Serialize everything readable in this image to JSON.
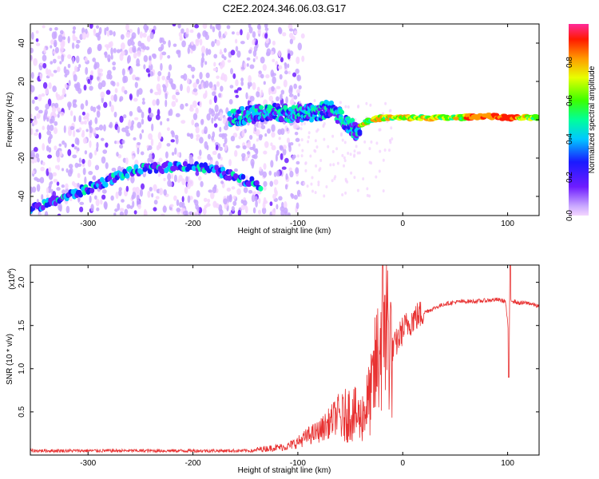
{
  "chart_data": [
    {
      "type": "heatmap",
      "title": "C2E2.2024.346.06.03.G17",
      "xlabel": "Height of straight line (km)",
      "ylabel": "Frequency (Hz)",
      "xlim": [
        -355,
        130
      ],
      "ylim": [
        -50,
        50
      ],
      "xticks": [
        "-300",
        "-200",
        "-100",
        "0",
        "100"
      ],
      "yticks": [
        "-40",
        "-20",
        "0",
        "20",
        "40"
      ],
      "colorbar": {
        "label": "Normalized spectral amplitude",
        "range": [
          0,
          1
        ],
        "ticks": [
          "0.0",
          "0.2",
          "0.4",
          "0.6",
          "0.8"
        ]
      },
      "traces": [
        {
          "description_x": [
            -355,
            -330,
            -300,
            -270,
            -250,
            -230,
            -210,
            -190,
            -170,
            -150,
            -135
          ],
          "y": [
            -47,
            -42,
            -36,
            -29,
            -26,
            -25,
            -24,
            -25,
            -28,
            -32,
            -34
          ]
        },
        {
          "x": [
            -165,
            -140,
            -120,
            -100,
            -80,
            -70,
            -60,
            -50,
            -45,
            -35,
            -20,
            0,
            20,
            50,
            80,
            100,
            130
          ],
          "y": [
            1,
            3,
            4,
            3,
            4,
            6,
            2,
            -3,
            -6,
            -1,
            1,
            1,
            1,
            1,
            2,
            1,
            1
          ]
        }
      ]
    },
    {
      "type": "line",
      "title": "",
      "xlabel": "Height of straight line (km)",
      "ylabel": "SNR (10 * v/v)",
      "multiplier": "(x10",
      "multiplier_exp": "4",
      "multiplier_close": ")",
      "xlim": [
        -355,
        130
      ],
      "ylim": [
        0,
        2.2
      ],
      "xticks": [
        "-300",
        "-200",
        "-100",
        "0",
        "100"
      ],
      "yticks": [
        "0.5",
        "1.0",
        "1.5",
        "2.0"
      ],
      "color": "#e83232",
      "x": [
        -355,
        -300,
        -200,
        -140,
        -110,
        -100,
        -90,
        -80,
        -70,
        -60,
        -50,
        -40,
        -30,
        -25,
        -20,
        -15,
        -10,
        0,
        10,
        20,
        30,
        40,
        50,
        60,
        70,
        80,
        90,
        98,
        101,
        103,
        110,
        120,
        130
      ],
      "y": [
        0.05,
        0.05,
        0.05,
        0.05,
        0.08,
        0.12,
        0.18,
        0.22,
        0.3,
        0.4,
        0.5,
        0.42,
        0.7,
        1.05,
        1.4,
        1.5,
        1.2,
        1.45,
        1.58,
        1.65,
        1.7,
        1.75,
        1.77,
        1.78,
        1.78,
        1.79,
        1.8,
        1.78,
        1.4,
        1.8,
        1.76,
        1.76,
        1.72
      ]
    }
  ]
}
